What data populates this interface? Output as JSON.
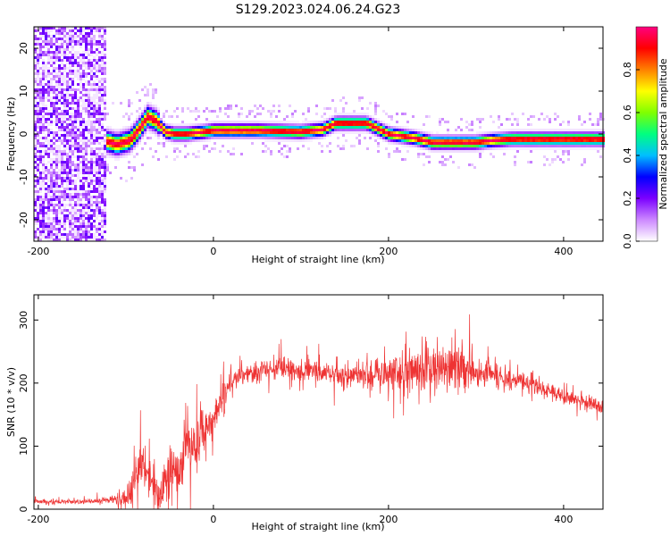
{
  "figure": {
    "title": "S129.2023.024.06.24.G23"
  },
  "chart_data": [
    {
      "type": "heatmap",
      "xlabel": "Height of straight line (km)",
      "ylabel": "Frequency (Hz)",
      "xlim": [
        -205,
        445
      ],
      "ylim": [
        -25,
        25
      ],
      "x_ticks": [
        -200,
        0,
        200,
        400
      ],
      "y_ticks": [
        -20,
        -10,
        0,
        10,
        20
      ],
      "colorbar": {
        "label": "Normalized spectral amplitude",
        "range": [
          0,
          1
        ],
        "ticks": [
          "0.0",
          "0.2",
          "0.4",
          "0.6",
          "0.8"
        ],
        "ticks_values": [
          0.0,
          0.2,
          0.4,
          0.6,
          0.8
        ],
        "colors": [
          "#ffffff",
          "#cc88ff",
          "#7b00ff",
          "#0000ff",
          "#00bfff",
          "#00ff80",
          "#80ff00",
          "#ffff00",
          "#ff8000",
          "#ff0000",
          "#ff0080"
        ]
      },
      "ridge": {
        "description_values": "peak frequency (Hz) vs height (km)",
        "x": [
          -205,
          -150,
          -125,
          -110,
          -95,
          -85,
          -75,
          -65,
          -55,
          -45,
          -30,
          -10,
          0,
          50,
          100,
          125,
          140,
          175,
          200,
          230,
          250,
          300,
          320,
          340,
          380,
          445
        ],
        "y": [
          -1,
          0,
          -1.5,
          -2.5,
          -1.5,
          1,
          4,
          3,
          0.5,
          0,
          0,
          0.5,
          0.8,
          0.8,
          0.5,
          1,
          2.5,
          2.5,
          0,
          -1,
          -2,
          -2,
          -1.5,
          -1.2,
          -1.2,
          -1.2
        ]
      },
      "noise_region_km": [
        -205,
        -122
      ]
    },
    {
      "type": "line",
      "xlabel": "Height of straight line (km)",
      "ylabel": "SNR (10 * v/v)",
      "xlim": [
        -205,
        445
      ],
      "ylim": [
        0,
        340
      ],
      "x_ticks": [
        -200,
        0,
        200,
        400
      ],
      "y_ticks": [
        0,
        100,
        200,
        300
      ],
      "series": [
        {
          "color": "#ee3333",
          "x": [
            -205,
            -180,
            -150,
            -120,
            -100,
            -90,
            -80,
            -70,
            -60,
            -50,
            -40,
            -30,
            -20,
            -10,
            0,
            10,
            20,
            30,
            50,
            80,
            120,
            160,
            200,
            240,
            280,
            320,
            360,
            400,
            445
          ],
          "y": [
            12,
            12,
            12,
            14,
            20,
            40,
            70,
            45,
            25,
            70,
            45,
            120,
            90,
            130,
            140,
            175,
            200,
            215,
            218,
            225,
            218,
            212,
            218,
            220,
            225,
            215,
            198,
            180,
            162
          ],
          "noise_amplitude": [
            3,
            3,
            3,
            4,
            15,
            30,
            35,
            30,
            20,
            35,
            35,
            40,
            45,
            40,
            30,
            25,
            20,
            14,
            14,
            15,
            16,
            20,
            30,
            35,
            30,
            18,
            12,
            10,
            10
          ]
        }
      ]
    }
  ]
}
